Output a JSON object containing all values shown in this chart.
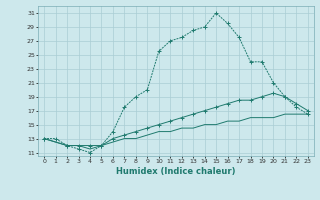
{
  "line1_x": [
    0,
    1,
    2,
    3,
    4,
    5,
    6,
    7,
    8,
    9,
    10,
    11,
    12,
    13,
    14,
    15,
    16,
    17,
    18,
    19,
    20,
    21,
    22,
    23
  ],
  "line1_y": [
    13,
    13,
    12,
    11.5,
    11,
    12,
    14,
    17.5,
    19,
    20,
    25.5,
    27,
    27.5,
    28.5,
    29,
    31,
    29.5,
    27.5,
    24,
    24,
    21,
    19,
    17.5,
    16.5
  ],
  "line2_x": [
    0,
    2,
    3,
    4,
    5,
    6,
    7,
    8,
    9,
    10,
    11,
    12,
    13,
    14,
    15,
    16,
    17,
    18,
    19,
    20,
    21,
    22,
    23
  ],
  "line2_y": [
    13,
    12,
    12,
    12,
    12,
    13,
    13.5,
    14,
    14.5,
    15,
    15.5,
    16,
    16.5,
    17,
    17.5,
    18,
    18.5,
    18.5,
    19,
    19.5,
    19,
    18,
    17
  ],
  "line3_x": [
    0,
    2,
    3,
    4,
    5,
    6,
    7,
    8,
    9,
    10,
    11,
    12,
    13,
    14,
    15,
    16,
    17,
    18,
    19,
    20,
    21,
    22,
    23
  ],
  "line3_y": [
    13,
    12,
    12,
    11.5,
    12,
    12.5,
    13,
    13,
    13.5,
    14,
    14,
    14.5,
    14.5,
    15,
    15,
    15.5,
    15.5,
    16,
    16,
    16,
    16.5,
    16.5,
    16.5
  ],
  "line_color": "#1f7a6e",
  "bg_color": "#cde8ec",
  "grid_color": "#aacdd4",
  "xlabel": "Humidex (Indice chaleur)",
  "xlim": [
    -0.5,
    23.5
  ],
  "ylim": [
    10.5,
    32
  ],
  "xticks": [
    0,
    1,
    2,
    3,
    4,
    5,
    6,
    7,
    8,
    9,
    10,
    11,
    12,
    13,
    14,
    15,
    16,
    17,
    18,
    19,
    20,
    21,
    22,
    23
  ],
  "yticks": [
    11,
    13,
    15,
    17,
    19,
    21,
    23,
    25,
    27,
    29,
    31
  ],
  "marker": "+"
}
